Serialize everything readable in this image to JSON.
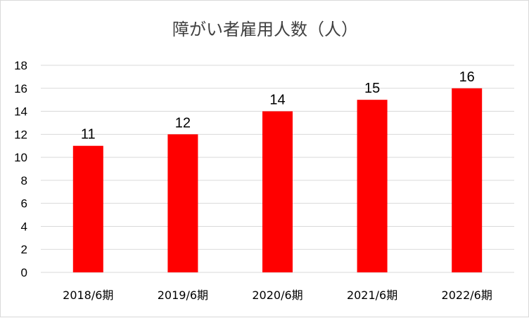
{
  "chart_data": {
    "type": "bar",
    "title": "障がい者雇用人数（人）",
    "categories": [
      "2018/6期",
      "2019/6期",
      "2020/6期",
      "2021/6期",
      "2022/6期"
    ],
    "values": [
      11,
      12,
      14,
      15,
      16
    ],
    "data_labels": [
      "11",
      "12",
      "14",
      "15",
      "16"
    ],
    "y_ticks": [
      "0",
      "2",
      "4",
      "6",
      "8",
      "10",
      "12",
      "14",
      "16",
      "18"
    ],
    "ylim": [
      0,
      18
    ],
    "xlabel": "",
    "ylabel": "",
    "grid": true,
    "legend": "none",
    "bar_color": "#ff0000"
  }
}
